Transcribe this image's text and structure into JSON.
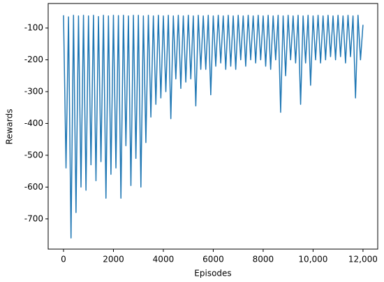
{
  "chart_data": {
    "type": "line",
    "x_label": "Episodes",
    "y_label": "Rewards",
    "x": [
      0,
      100,
      200,
      300,
      400,
      500,
      600,
      700,
      800,
      900,
      1000,
      1100,
      1200,
      1300,
      1400,
      1500,
      1600,
      1700,
      1800,
      1900,
      2000,
      2100,
      2200,
      2300,
      2400,
      2500,
      2600,
      2700,
      2800,
      2900,
      3000,
      3100,
      3200,
      3300,
      3400,
      3500,
      3600,
      3700,
      3800,
      3900,
      4000,
      4100,
      4200,
      4300,
      4400,
      4500,
      4600,
      4700,
      4800,
      4900,
      5000,
      5100,
      5200,
      5300,
      5400,
      5500,
      5600,
      5700,
      5800,
      5900,
      6000,
      6100,
      6200,
      6300,
      6400,
      6500,
      6600,
      6700,
      6800,
      6900,
      7000,
      7100,
      7200,
      7300,
      7400,
      7500,
      7600,
      7700,
      7800,
      7900,
      8000,
      8100,
      8200,
      8300,
      8400,
      8500,
      8600,
      8700,
      8800,
      8900,
      9000,
      9100,
      9200,
      9300,
      9400,
      9500,
      9600,
      9700,
      9800,
      9900,
      10000,
      10100,
      10200,
      10300,
      10400,
      10500,
      10600,
      10700,
      10800,
      10900,
      11000,
      11100,
      11200,
      11300,
      11400,
      11500,
      11600,
      11700,
      11800,
      11900,
      12000
    ],
    "series": [
      {
        "color": "#1f77b4",
        "values": [
          -60,
          -540,
          -65,
          -760,
          -60,
          -680,
          -62,
          -600,
          -60,
          -610,
          -62,
          -530,
          -60,
          -580,
          -64,
          -520,
          -60,
          -635,
          -62,
          -560,
          -60,
          -540,
          -61,
          -635,
          -60,
          -470,
          -62,
          -595,
          -60,
          -510,
          -60,
          -600,
          -62,
          -460,
          -60,
          -380,
          -62,
          -340,
          -60,
          -320,
          -62,
          -300,
          -60,
          -385,
          -62,
          -260,
          -60,
          -290,
          -62,
          -270,
          -60,
          -260,
          -62,
          -345,
          -60,
          -230,
          -62,
          -230,
          -60,
          -310,
          -62,
          -220,
          -60,
          -210,
          -62,
          -230,
          -60,
          -220,
          -62,
          -230,
          -60,
          -200,
          -62,
          -220,
          -60,
          -200,
          -62,
          -210,
          -60,
          -200,
          -62,
          -220,
          -60,
          -230,
          -62,
          -200,
          -60,
          -365,
          -62,
          -250,
          -60,
          -200,
          -62,
          -210,
          -60,
          -340,
          -62,
          -210,
          -60,
          -280,
          -62,
          -200,
          -60,
          -210,
          -62,
          -200,
          -60,
          -190,
          -62,
          -200,
          -60,
          -190,
          -62,
          -210,
          -60,
          -190,
          -62,
          -320,
          -60,
          -200,
          -90
        ]
      }
    ],
    "xlim": [
      -615,
      12590
    ],
    "ylim": [
      -795,
      -23
    ],
    "xticks": [
      0,
      2000,
      4000,
      6000,
      8000,
      {
        "value": 10000,
        "label": "10,000"
      },
      {
        "value": 12000,
        "label": "12,000"
      }
    ],
    "yticks": [
      -700,
      -600,
      -500,
      -400,
      -300,
      -200,
      -100
    ]
  }
}
